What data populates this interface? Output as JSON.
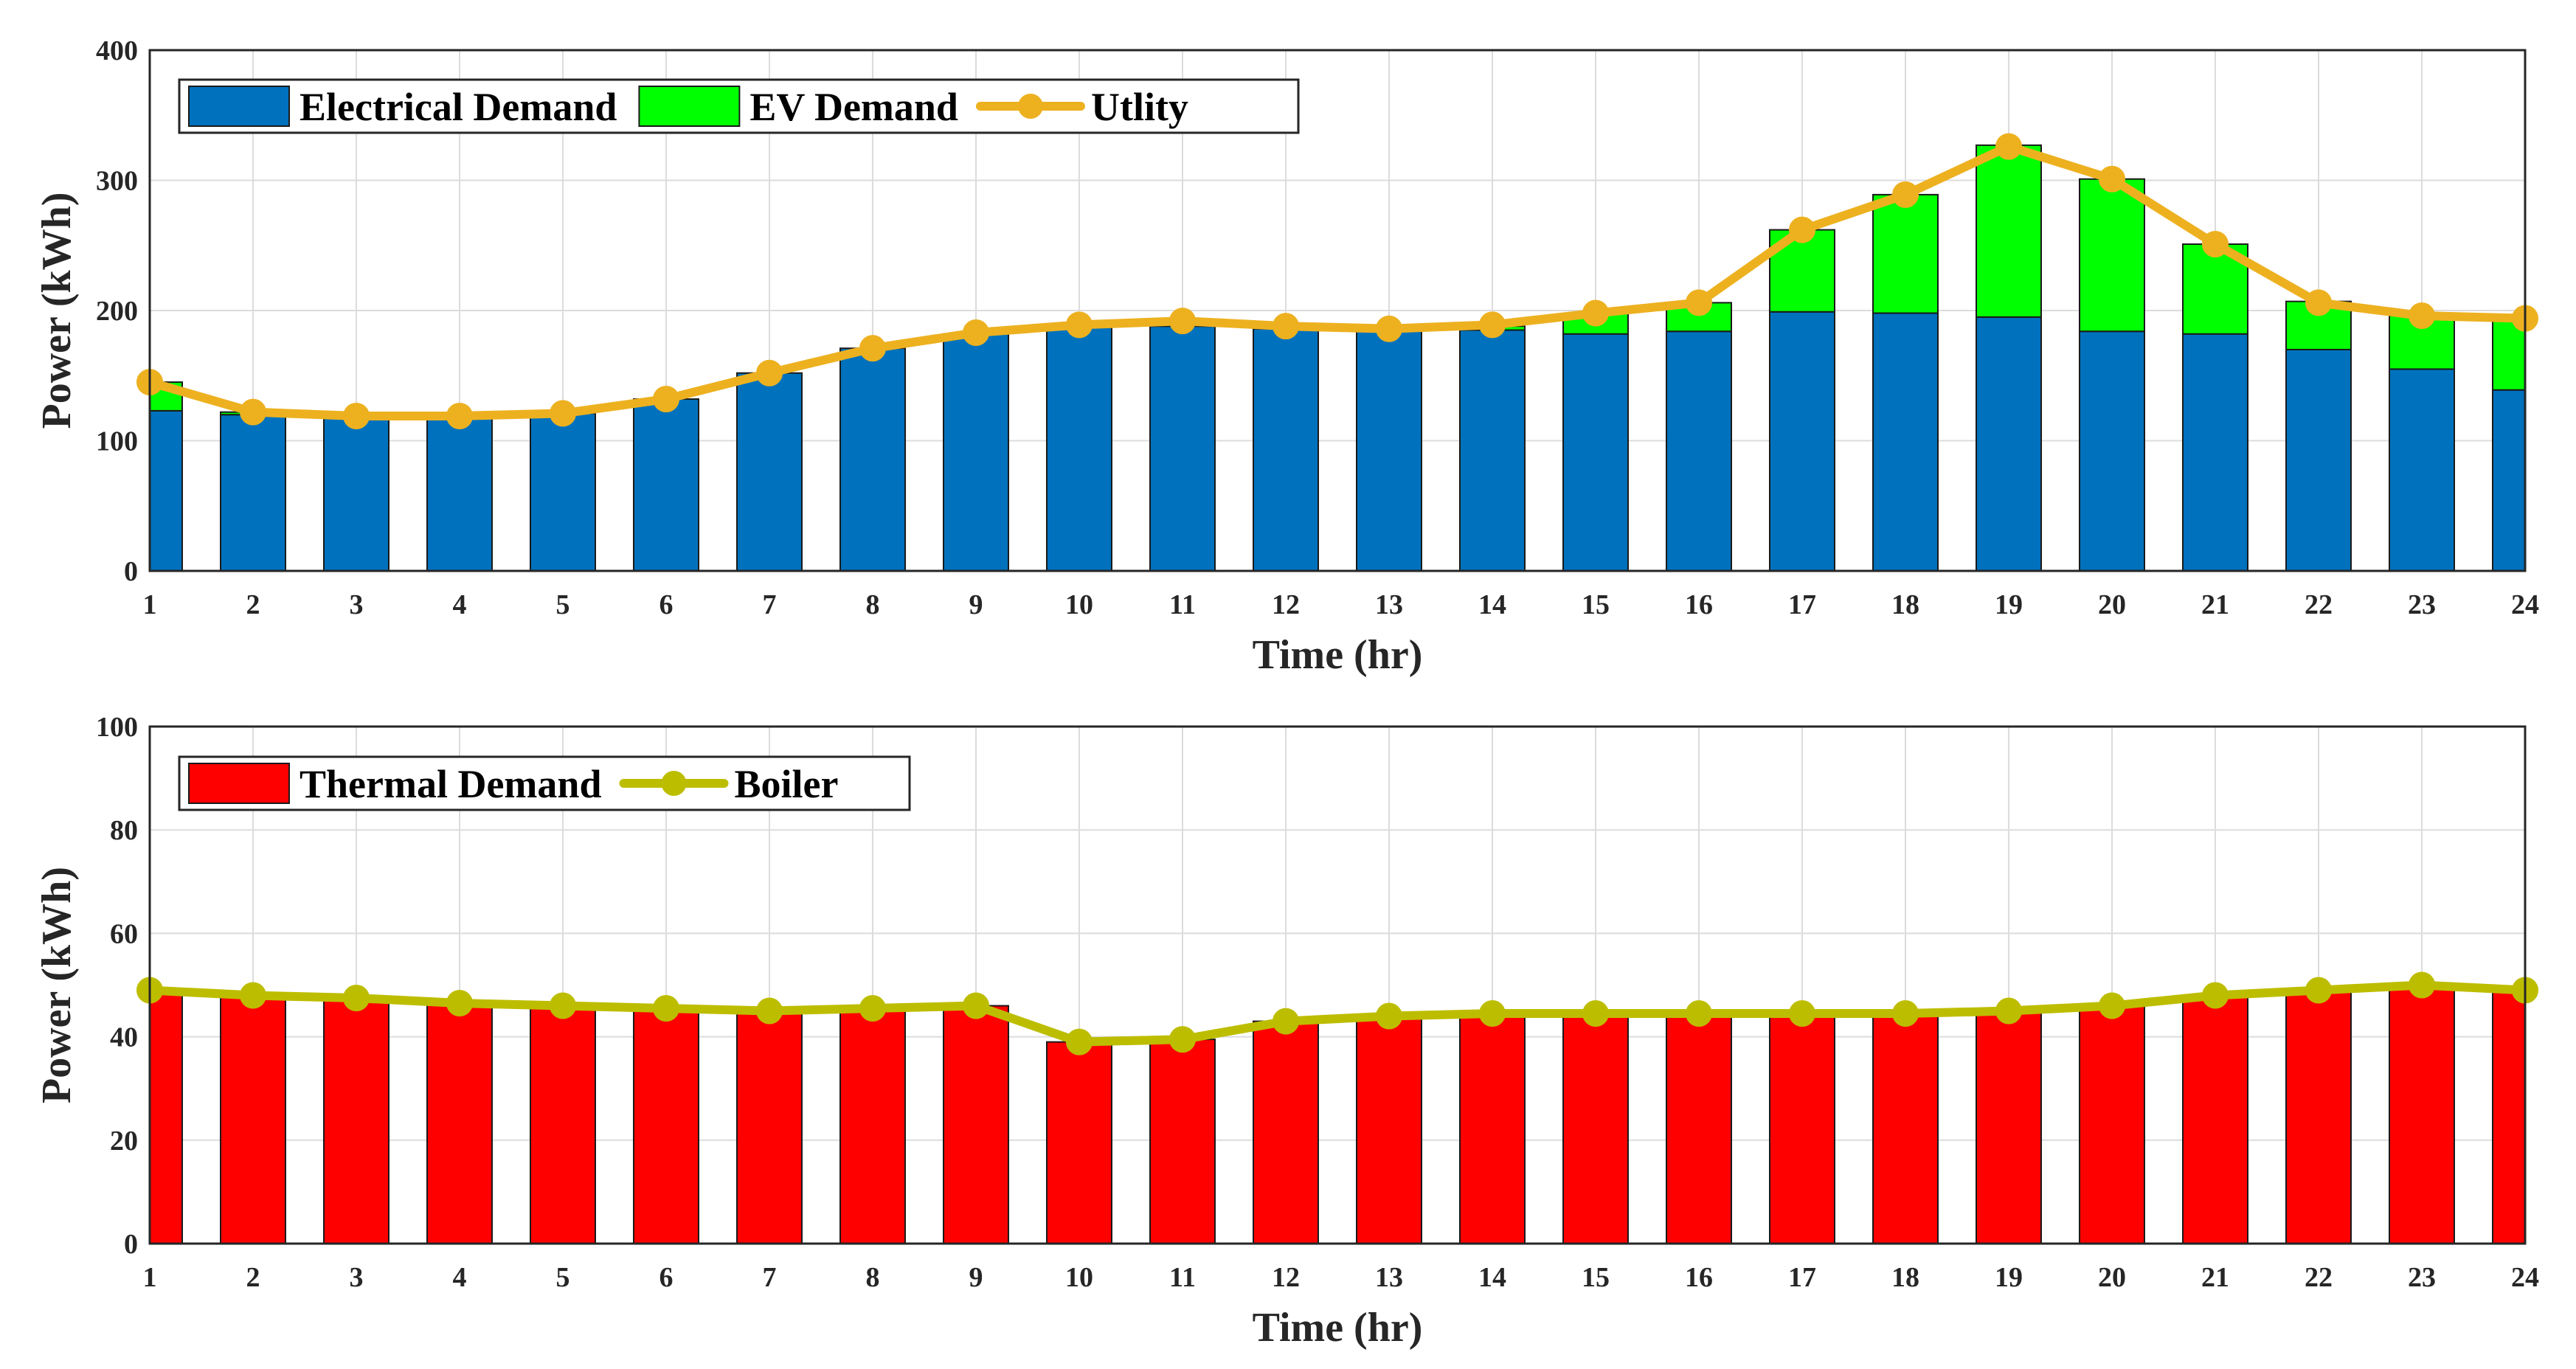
{
  "chart_data": [
    {
      "type": "bar",
      "stacked": true,
      "title": "",
      "xlabel": "Time (hr)",
      "ylabel": "Power (kWh)",
      "ylim": [
        0,
        400
      ],
      "yticks": [
        0,
        100,
        200,
        300,
        400
      ],
      "grid": true,
      "legend_position": "top-left",
      "categories": [
        "1",
        "2",
        "3",
        "4",
        "5",
        "6",
        "7",
        "8",
        "9",
        "10",
        "11",
        "12",
        "13",
        "14",
        "15",
        "16",
        "17",
        "18",
        "19",
        "20",
        "21",
        "22",
        "23",
        "24"
      ],
      "series": [
        {
          "name": "Electrical Demand",
          "kind": "bar",
          "color": "#0072BD",
          "values": [
            123,
            120,
            117,
            117,
            121,
            132,
            152,
            171,
            182,
            188,
            188,
            186,
            185,
            185,
            182,
            184,
            199,
            198,
            195,
            184,
            182,
            170,
            155,
            139
          ]
        },
        {
          "name": "EV Demand",
          "kind": "bar",
          "color": "#00FF00",
          "values": [
            22,
            2,
            2,
            2,
            0,
            0,
            0,
            0,
            0,
            1,
            4,
            2,
            1,
            3,
            16,
            22,
            63,
            91,
            132,
            117,
            69,
            37,
            41,
            57
          ]
        },
        {
          "name": "Utlity",
          "kind": "line",
          "color": "#EDB120",
          "values": [
            145,
            122,
            119,
            119,
            121,
            132,
            152,
            171,
            183,
            189,
            192,
            188,
            186,
            189,
            198,
            206,
            262,
            289,
            326,
            301,
            251,
            206,
            196,
            194
          ]
        }
      ]
    },
    {
      "type": "bar",
      "title": "",
      "xlabel": "Time (hr)",
      "ylabel": "Power (kWh)",
      "ylim": [
        0,
        100
      ],
      "yticks": [
        0,
        20,
        40,
        60,
        80,
        100
      ],
      "grid": true,
      "legend_position": "top-left",
      "categories": [
        "1",
        "2",
        "3",
        "4",
        "5",
        "6",
        "7",
        "8",
        "9",
        "10",
        "11",
        "12",
        "13",
        "14",
        "15",
        "16",
        "17",
        "18",
        "19",
        "20",
        "21",
        "22",
        "23",
        "24"
      ],
      "series": [
        {
          "name": "Thermal Demand",
          "kind": "bar",
          "color": "#FF0000",
          "values": [
            49,
            48,
            47.5,
            46.5,
            46,
            45.5,
            45,
            45.5,
            46,
            39,
            39.5,
            43,
            44,
            44.5,
            44.5,
            44.5,
            44.5,
            44.5,
            45,
            46,
            48,
            49,
            50,
            49
          ]
        },
        {
          "name": "Boiler",
          "kind": "line",
          "color": "#BDBD00",
          "values": [
            49,
            48,
            47.5,
            46.5,
            46,
            45.5,
            45,
            45.5,
            46,
            39,
            39.5,
            43,
            44,
            44.5,
            44.5,
            44.5,
            44.5,
            44.5,
            45,
            46,
            48,
            49,
            50,
            49
          ]
        }
      ]
    }
  ]
}
